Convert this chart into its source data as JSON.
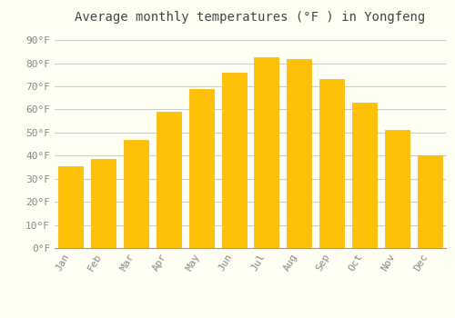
{
  "title": "Average monthly temperatures (°F ) in Yongfeng",
  "months": [
    "Jan",
    "Feb",
    "Mar",
    "Apr",
    "May",
    "Jun",
    "Jul",
    "Aug",
    "Sep",
    "Oct",
    "Nov",
    "Dec"
  ],
  "values": [
    35.5,
    38.5,
    47.0,
    59.0,
    69.0,
    76.0,
    82.5,
    82.0,
    73.0,
    63.0,
    51.0,
    40.0
  ],
  "bar_color": "#FFC107",
  "bar_edge_color": "#FFB300",
  "background_color": "#FFFFF4",
  "grid_color": "#CCCCCC",
  "title_fontsize": 10,
  "tick_fontsize": 8,
  "ylim": [
    0,
    95
  ],
  "yticks": [
    0,
    10,
    20,
    30,
    40,
    50,
    60,
    70,
    80,
    90
  ],
  "ytick_labels": [
    "0°F",
    "10°F",
    "20°F",
    "30°F",
    "40°F",
    "50°F",
    "60°F",
    "70°F",
    "80°F",
    "90°F"
  ]
}
